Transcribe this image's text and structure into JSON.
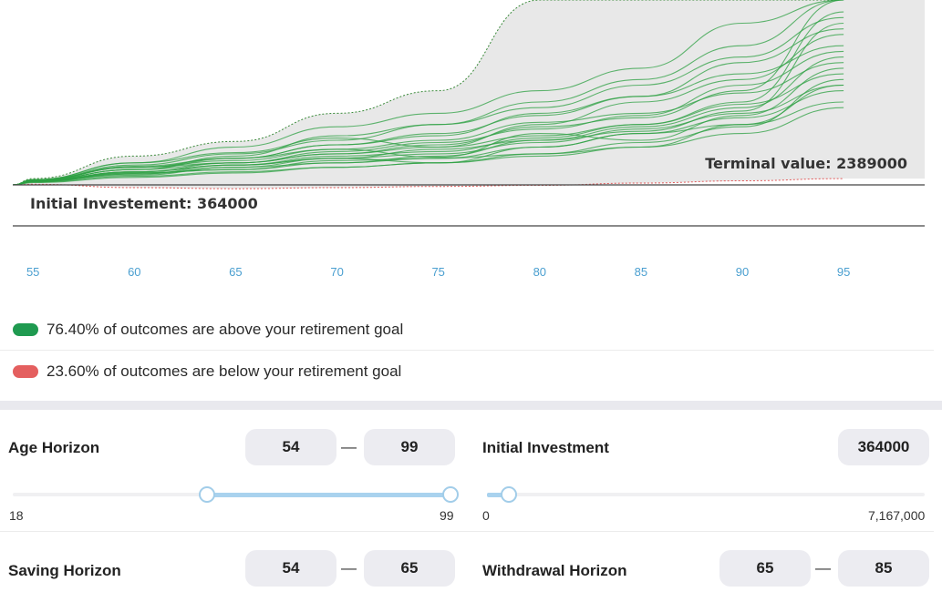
{
  "chart": {
    "initial_label": "Initial Investement: 364000",
    "terminal_label": "Terminal value: 2389000",
    "x_ticks": [
      "55",
      "60",
      "65",
      "70",
      "75",
      "80",
      "85",
      "90",
      "95"
    ],
    "colors": {
      "above": "#2ea043",
      "below": "#e05a5a",
      "band": "#e8e8e8",
      "tick": "#4a9fd0"
    }
  },
  "chart_data": {
    "type": "line",
    "title": "",
    "xlabel": "",
    "ylabel": "",
    "xlim": [
      54,
      99
    ],
    "x": [
      55,
      60,
      65,
      70,
      75,
      80,
      85,
      90,
      95
    ],
    "series": [
      {
        "values": [
          405000,
          520000,
          600000,
          680000,
          610000,
          820000,
          760000,
          980000,
          1400000
        ]
      },
      {
        "values": [
          395000,
          480000,
          540000,
          600000,
          560000,
          700000,
          820000,
          900000,
          1250000
        ]
      },
      {
        "values": [
          410000,
          560000,
          650000,
          780000,
          700000,
          900000,
          1100000,
          1300000,
          1700000
        ]
      },
      {
        "values": [
          400000,
          450000,
          520000,
          560000,
          620000,
          760000,
          880000,
          1050000,
          1500000
        ]
      },
      {
        "values": [
          390000,
          470000,
          500000,
          580000,
          600000,
          640000,
          700000,
          900000,
          1100000
        ]
      },
      {
        "values": [
          400000,
          500000,
          560000,
          640000,
          720000,
          880000,
          960000,
          1200000,
          2100000
        ]
      },
      {
        "values": [
          395000,
          460000,
          520000,
          600000,
          680000,
          760000,
          840000,
          1020000,
          1800000
        ]
      },
      {
        "values": [
          405000,
          530000,
          600000,
          720000,
          800000,
          1000000,
          1150000,
          1350000,
          1600000
        ]
      },
      {
        "values": [
          385000,
          430000,
          470000,
          520000,
          560000,
          640000,
          740000,
          880000,
          1300000
        ]
      },
      {
        "values": [
          410000,
          520000,
          580000,
          680000,
          760000,
          920000,
          1000000,
          1180000,
          1450000
        ]
      },
      {
        "values": [
          400000,
          480000,
          540000,
          620000,
          660000,
          780000,
          900000,
          1100000,
          1900000
        ]
      },
      {
        "values": [
          395000,
          470000,
          500000,
          560000,
          600000,
          700000,
          820000,
          960000,
          1200000
        ]
      },
      {
        "values": [
          405000,
          540000,
          640000,
          760000,
          900000,
          1100000,
          1300000,
          1600000,
          2200000
        ]
      },
      {
        "values": [
          390000,
          440000,
          480000,
          520000,
          560000,
          620000,
          700000,
          820000,
          1050000
        ]
      },
      {
        "values": [
          410000,
          560000,
          700000,
          880000,
          1000000,
          1200000,
          1400000,
          1800000,
          2300000
        ]
      },
      {
        "values": [
          400000,
          500000,
          600000,
          720000,
          820000,
          980000,
          1150000,
          1450000,
          1750000
        ]
      },
      {
        "values": [
          395000,
          480000,
          560000,
          660000,
          740000,
          860000,
          980000,
          1250000,
          1550000
        ]
      },
      {
        "values": [
          400000,
          500000,
          620000,
          800000,
          900000,
          1050000,
          1250000,
          1500000,
          1850000
        ]
      },
      {
        "values": [
          405000,
          520000,
          560000,
          640000,
          700000,
          800000,
          900000,
          1080000,
          1350000
        ]
      },
      {
        "values": [
          400000,
          460000,
          540000,
          600000,
          640000,
          740000,
          860000,
          1000000,
          1250000
        ]
      }
    ],
    "bands": {
      "upper": [
        420000,
        620000,
        750000,
        1000000,
        1200000,
        2400000,
        2800000,
        3600000,
        4200000
      ],
      "lower": [
        370000,
        340000,
        330000,
        340000,
        350000,
        360000,
        380000,
        400000,
        420000
      ]
    }
  },
  "legend": {
    "above_text": "76.40% of outcomes are above your retirement goal",
    "below_text": "23.60% of outcomes are below your retirement goal",
    "above_color": "#1f9a50",
    "below_color": "#e45f5f"
  },
  "controls": {
    "age_horizon": {
      "label": "Age Horizon",
      "from": "54",
      "to": "99",
      "min_label": "18",
      "max_label": "99",
      "range_min": 18,
      "range_max": 99
    },
    "initial_investment": {
      "label": "Initial Investment",
      "value": "364000",
      "min_label": "0",
      "max_label": "7,167,000",
      "range_min": 0,
      "range_max": 7167000
    },
    "saving_horizon": {
      "label": "Saving Horizon",
      "from": "54",
      "to": "65"
    },
    "withdrawal_horizon": {
      "label": "Withdrawal Horizon",
      "from": "65",
      "to": "85"
    },
    "dash": "—"
  }
}
